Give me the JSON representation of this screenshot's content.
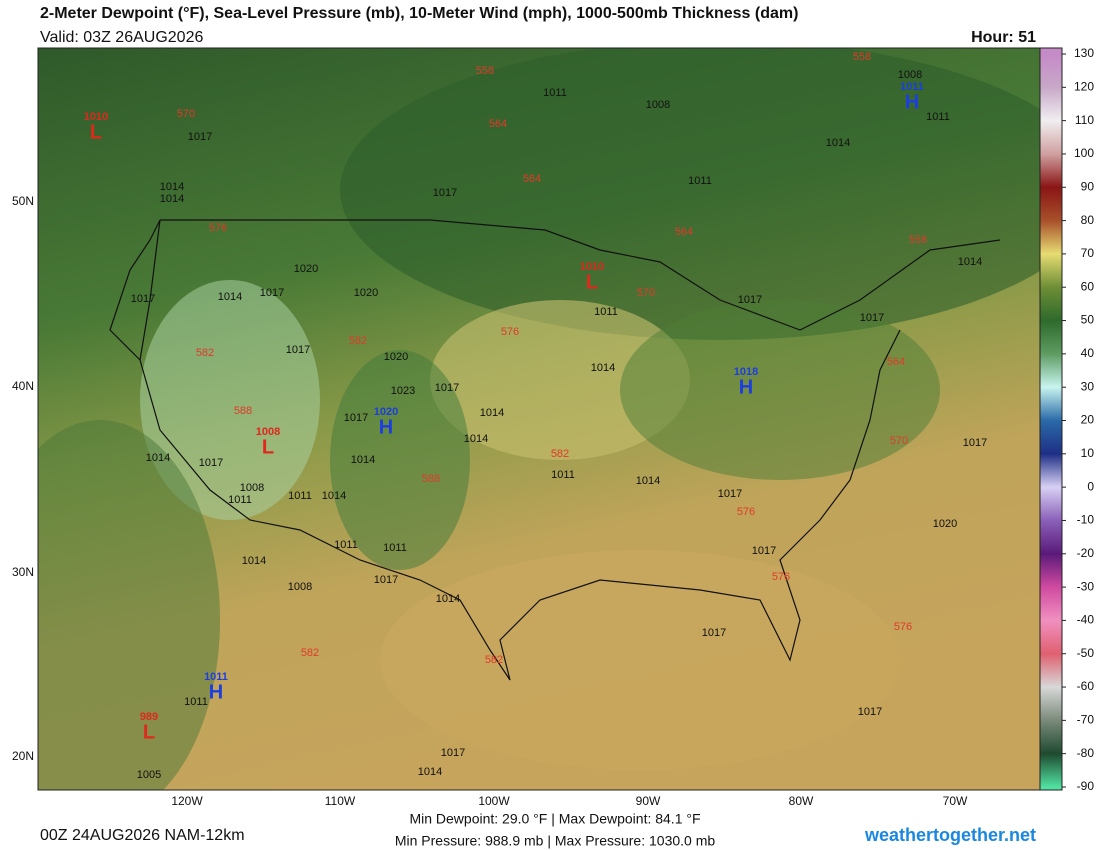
{
  "header": {
    "title": "2-Meter Dewpoint (°F), Sea-Level Pressure (mb), 10-Meter Wind (mph), 1000-500mb Thickness (dam)",
    "valid": "Valid: 03Z 26AUG2026",
    "hour": "Hour: 51"
  },
  "latitudes": [
    "50N",
    "40N",
    "30N",
    "20N"
  ],
  "longitudes": [
    "120W",
    "110W",
    "100W",
    "90W",
    "80W",
    "70W"
  ],
  "colorbar": {
    "ticks": [
      130,
      120,
      110,
      100,
      90,
      80,
      70,
      60,
      50,
      40,
      30,
      20,
      10,
      0,
      -10,
      -20,
      -30,
      -40,
      -50,
      -60,
      -70,
      -80,
      -90
    ],
    "colors": [
      "#c58ac8",
      "#c8a8c8",
      "#f0eef0",
      "#d0a0a0",
      "#8a1515",
      "#a8502a",
      "#e6dc72",
      "#6e8e36",
      "#2e6a2c",
      "#5e9c62",
      "#c8f4ee",
      "#2a6aa8",
      "#1e2f86",
      "#d8d0f4",
      "#8a60b8",
      "#5a1a7a",
      "#d04aa0",
      "#f090c0",
      "#e06070",
      "#d8d8d8",
      "#7a8a7a",
      "#1e4a30",
      "#50e0a0"
    ]
  },
  "centers": [
    {
      "letter": "L",
      "pressure": "1010"
    },
    {
      "letter": "H",
      "pressure": "1011"
    },
    {
      "letter": "L",
      "pressure": "1010"
    },
    {
      "letter": "H",
      "pressure": "1018"
    },
    {
      "letter": "H",
      "pressure": "1020"
    },
    {
      "letter": "L",
      "pressure": "1008"
    },
    {
      "letter": "H",
      "pressure": "1011"
    },
    {
      "letter": "L",
      "pressure": "989"
    }
  ],
  "isobar_labels": [
    "1011",
    "1008",
    "1008",
    "1011",
    "1014",
    "1011",
    "1017",
    "1017",
    "1014",
    "1014",
    "1020",
    "1014",
    "1017",
    "1020",
    "1017",
    "1017",
    "1020",
    "1023",
    "1017",
    "1017",
    "1014",
    "1014",
    "1014",
    "1017",
    "1014",
    "1011",
    "1014",
    "1008",
    "1011",
    "1014",
    "1011",
    "1017",
    "1020",
    "1011",
    "1011",
    "1014",
    "1017",
    "1017",
    "1008",
    "1014",
    "1017",
    "1017",
    "1011",
    "1005",
    "1017",
    "1014",
    "1017",
    "1014",
    "1017",
    "1014",
    "1017",
    "1011"
  ],
  "thickness_labels": [
    "558",
    "558",
    "570",
    "564",
    "564",
    "564",
    "558",
    "576",
    "570",
    "576",
    "582",
    "582",
    "588",
    "582",
    "588",
    "576",
    "576",
    "576",
    "582",
    "582",
    "564",
    "570"
  ],
  "footer": {
    "run": "00Z 24AUG2026 NAM-12km",
    "dewpoint_stats": "Min Dewpoint:  29.0 °F | Max Dewpoint:  84.1 °F",
    "pressure_stats": "Min Pressure: 988.9 mb | Max Pressure: 1030.0 mb",
    "site": "weathertogether.net"
  }
}
